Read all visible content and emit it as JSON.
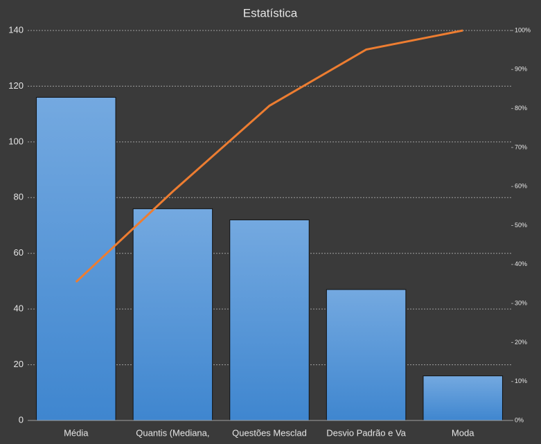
{
  "chart_data": {
    "type": "pareto",
    "title": "Estatística",
    "categories": [
      "Média",
      "Quantis (Mediana,",
      "Questões Mesclad",
      "Desvio Padrão e Va",
      "Moda"
    ],
    "series": [
      {
        "type": "bar",
        "color": "#5b9bd5",
        "values": [
          116,
          76,
          72,
          47,
          16
        ]
      },
      {
        "type": "line",
        "color": "#ed7d31",
        "axis": "y2",
        "values": [
          35.5,
          58.7,
          80.7,
          95.1,
          100
        ]
      }
    ],
    "ylim": [
      0,
      140
    ],
    "yticks": [
      0,
      20,
      40,
      60,
      80,
      100,
      120,
      140
    ],
    "y2lim": [
      0,
      100
    ],
    "y2ticks": [
      {
        "value": 0,
        "label": "0%"
      },
      {
        "value": 10,
        "label": "10%"
      },
      {
        "value": 20,
        "label": "20%"
      },
      {
        "value": 30,
        "label": "30%"
      },
      {
        "value": 40,
        "label": "40%"
      },
      {
        "value": 50,
        "label": "50%"
      },
      {
        "value": 60,
        "label": "60%"
      },
      {
        "value": 70,
        "label": "70%"
      },
      {
        "value": 80,
        "label": "80%"
      },
      {
        "value": 90,
        "label": "90%"
      },
      {
        "value": 100,
        "label": "100%"
      }
    ],
    "grid": true
  }
}
